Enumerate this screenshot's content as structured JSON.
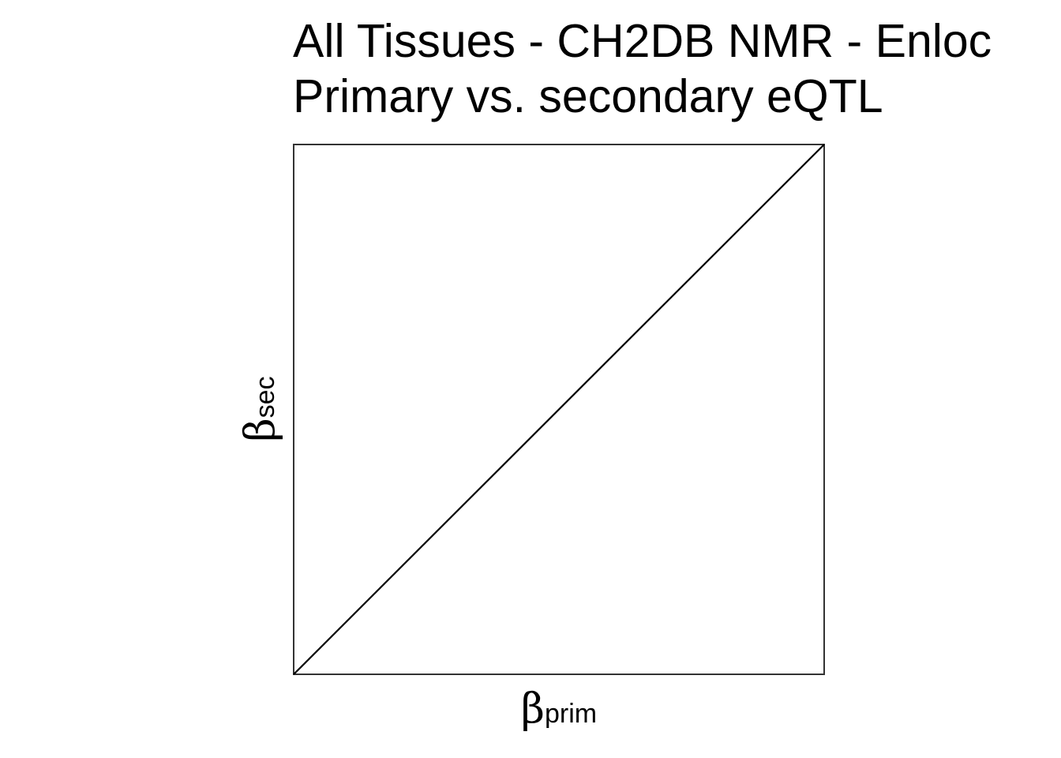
{
  "chart_data": {
    "type": "scatter",
    "title": "All Tissues - CH2DB NMR - Enloc",
    "subtitle": "Primary vs. secondary eQTL",
    "xlabel": {
      "symbol": "β",
      "subscript": "prim"
    },
    "ylabel": {
      "symbol": "β",
      "subscript": "sec"
    },
    "xlim": [
      0,
      1
    ],
    "ylim": [
      0,
      1
    ],
    "grid": false,
    "series": [],
    "reference_line": {
      "type": "identity",
      "x": [
        0,
        1
      ],
      "y": [
        0,
        1
      ],
      "color": "#000000"
    },
    "frame_color": "#333333"
  }
}
